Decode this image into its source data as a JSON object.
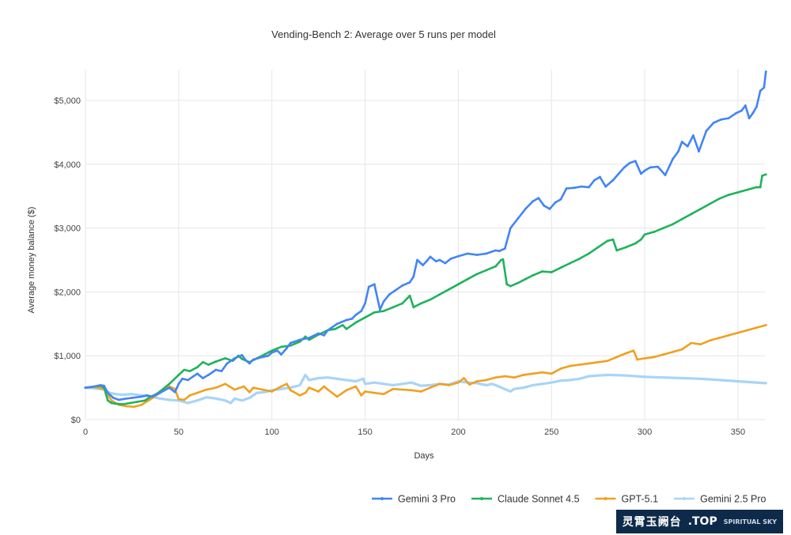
{
  "chart_data": {
    "type": "line",
    "title": "Vending-Bench 2: Average over 5 runs per model",
    "xlabel": "Days",
    "ylabel": "Average money balance ($)",
    "xlim": [
      0,
      365
    ],
    "ylim": [
      0,
      5500
    ],
    "x_ticks": [
      0,
      50,
      100,
      150,
      200,
      250,
      300,
      350
    ],
    "x_tick_labels": [
      "0",
      "50",
      "100",
      "150",
      "200",
      "250",
      "300",
      "350"
    ],
    "y_ticks": [
      0,
      1000,
      2000,
      3000,
      4000,
      5000
    ],
    "y_tick_labels": [
      "$0",
      "$1,000",
      "$2,000",
      "$3,000",
      "$4,000",
      "$5,000"
    ],
    "grid": true,
    "legend_position": "bottom-right",
    "series": [
      {
        "name": "Gemini 3 Pro",
        "color": "#4285f4",
        "x": [
          0,
          5,
          8,
          10,
          12,
          15,
          18,
          20,
          25,
          30,
          33,
          36,
          40,
          45,
          48,
          50,
          52,
          55,
          58,
          60,
          63,
          66,
          70,
          73,
          76,
          80,
          84,
          86,
          88,
          90,
          95,
          98,
          100,
          103,
          105,
          108,
          110,
          115,
          120,
          125,
          128,
          130,
          135,
          140,
          143,
          145,
          148,
          150,
          152,
          155,
          158,
          160,
          163,
          166,
          170,
          174,
          176,
          178,
          181,
          183,
          185,
          188,
          190,
          193,
          196,
          200,
          205,
          210,
          215,
          220,
          222,
          225,
          228,
          232,
          236,
          240,
          243,
          246,
          249,
          252,
          255,
          258,
          262,
          266,
          270,
          273,
          276,
          279,
          283,
          286,
          289,
          292,
          295,
          298,
          300,
          303,
          307,
          311,
          315,
          318,
          320,
          323,
          326,
          329,
          333,
          337,
          341,
          345,
          349,
          352,
          354,
          356,
          358,
          360,
          362,
          364,
          365
        ],
        "y": [
          500,
          520,
          540,
          530,
          420,
          340,
          310,
          320,
          340,
          360,
          380,
          360,
          420,
          500,
          430,
          560,
          640,
          620,
          680,
          720,
          650,
          700,
          780,
          760,
          880,
          960,
          1010,
          930,
          880,
          940,
          980,
          1000,
          1050,
          1080,
          1020,
          1120,
          1200,
          1250,
          1280,
          1350,
          1320,
          1400,
          1500,
          1560,
          1580,
          1640,
          1700,
          1820,
          2080,
          2120,
          1720,
          1850,
          1960,
          2020,
          2100,
          2150,
          2240,
          2500,
          2420,
          2480,
          2550,
          2480,
          2500,
          2450,
          2520,
          2560,
          2600,
          2580,
          2600,
          2650,
          2640,
          2680,
          3000,
          3150,
          3300,
          3420,
          3470,
          3350,
          3300,
          3400,
          3450,
          3620,
          3630,
          3650,
          3640,
          3750,
          3800,
          3650,
          3750,
          3850,
          3950,
          4020,
          4050,
          3850,
          3900,
          3950,
          3960,
          3830,
          4080,
          4200,
          4350,
          4280,
          4450,
          4200,
          4520,
          4650,
          4700,
          4720,
          4800,
          4840,
          4920,
          4720,
          4800,
          4900,
          5150,
          5200,
          5450
        ]
      },
      {
        "name": "Claude Sonnet 4.5",
        "color": "#1fb35b",
        "x": [
          0,
          5,
          8,
          10,
          12,
          14,
          16,
          20,
          24,
          28,
          32,
          35,
          38,
          40,
          45,
          50,
          53,
          56,
          60,
          63,
          66,
          70,
          75,
          79,
          82,
          84,
          88,
          92,
          96,
          100,
          105,
          110,
          115,
          118,
          120,
          125,
          130,
          134,
          138,
          140,
          145,
          150,
          155,
          160,
          165,
          170,
          174,
          176,
          180,
          185,
          190,
          195,
          200,
          205,
          210,
          215,
          220,
          223,
          224,
          226,
          228,
          232,
          236,
          240,
          245,
          250,
          255,
          260,
          265,
          270,
          275,
          280,
          283,
          285,
          290,
          295,
          298,
          300,
          305,
          310,
          315,
          320,
          325,
          330,
          335,
          340,
          345,
          350,
          355,
          360,
          362,
          363,
          365
        ],
        "y": [
          500,
          520,
          530,
          500,
          300,
          260,
          250,
          240,
          260,
          280,
          300,
          360,
          400,
          440,
          560,
          700,
          780,
          760,
          820,
          900,
          860,
          910,
          960,
          920,
          1000,
          950,
          900,
          960,
          1020,
          1080,
          1140,
          1160,
          1220,
          1300,
          1250,
          1330,
          1400,
          1420,
          1480,
          1420,
          1520,
          1600,
          1680,
          1700,
          1760,
          1820,
          1940,
          1760,
          1820,
          1880,
          1960,
          2040,
          2120,
          2200,
          2280,
          2340,
          2400,
          2500,
          2510,
          2120,
          2090,
          2140,
          2200,
          2260,
          2320,
          2310,
          2380,
          2450,
          2520,
          2600,
          2700,
          2800,
          2820,
          2650,
          2700,
          2760,
          2820,
          2900,
          2940,
          3000,
          3060,
          3140,
          3220,
          3300,
          3380,
          3460,
          3520,
          3560,
          3600,
          3640,
          3640,
          3820,
          3840
        ]
      },
      {
        "name": "GPT-5.1",
        "color": "#f0a020",
        "x": [
          0,
          5,
          10,
          14,
          18,
          22,
          26,
          30,
          35,
          40,
          45,
          48,
          50,
          53,
          56,
          60,
          65,
          70,
          75,
          80,
          85,
          88,
          90,
          95,
          100,
          105,
          108,
          110,
          115,
          118,
          120,
          125,
          128,
          130,
          135,
          140,
          145,
          148,
          150,
          155,
          160,
          165,
          170,
          175,
          180,
          185,
          190,
          195,
          200,
          203,
          206,
          210,
          215,
          220,
          225,
          230,
          235,
          240,
          245,
          250,
          255,
          260,
          265,
          270,
          275,
          280,
          285,
          290,
          294,
          296,
          300,
          305,
          310,
          315,
          320,
          325,
          330,
          335,
          340,
          345,
          350,
          355,
          360,
          365
        ],
        "y": [
          500,
          510,
          480,
          300,
          230,
          210,
          200,
          230,
          320,
          420,
          520,
          480,
          320,
          310,
          380,
          420,
          470,
          500,
          560,
          470,
          520,
          430,
          500,
          470,
          440,
          520,
          560,
          460,
          380,
          420,
          500,
          440,
          520,
          470,
          360,
          460,
          520,
          380,
          440,
          420,
          400,
          480,
          470,
          460,
          440,
          500,
          560,
          540,
          580,
          650,
          550,
          600,
          620,
          660,
          680,
          660,
          700,
          720,
          740,
          720,
          800,
          840,
          860,
          880,
          900,
          920,
          980,
          1040,
          1080,
          940,
          960,
          980,
          1020,
          1060,
          1100,
          1200,
          1180,
          1240,
          1280,
          1320,
          1360,
          1400,
          1440,
          1480
        ]
      },
      {
        "name": "Gemini 2.5 Pro",
        "color": "#a8d4f8",
        "x": [
          0,
          5,
          10,
          13,
          16,
          20,
          25,
          30,
          35,
          40,
          45,
          50,
          55,
          60,
          65,
          70,
          75,
          78,
          80,
          84,
          88,
          92,
          96,
          100,
          105,
          110,
          115,
          118,
          120,
          125,
          130,
          135,
          140,
          145,
          149,
          150,
          155,
          160,
          165,
          170,
          175,
          180,
          185,
          190,
          195,
          200,
          205,
          210,
          215,
          218,
          220,
          228,
          230,
          235,
          240,
          245,
          250,
          255,
          260,
          265,
          270,
          275,
          280,
          290,
          300,
          310,
          320,
          330,
          340,
          350,
          360,
          365
        ],
        "y": [
          500,
          490,
          470,
          420,
          400,
          390,
          400,
          380,
          360,
          330,
          310,
          300,
          260,
          300,
          350,
          330,
          300,
          260,
          330,
          300,
          340,
          420,
          430,
          460,
          480,
          500,
          540,
          700,
          620,
          650,
          660,
          640,
          620,
          600,
          640,
          560,
          580,
          560,
          540,
          560,
          580,
          530,
          540,
          560,
          550,
          600,
          580,
          570,
          540,
          560,
          540,
          440,
          480,
          500,
          540,
          560,
          580,
          610,
          620,
          640,
          680,
          690,
          700,
          690,
          670,
          660,
          650,
          640,
          620,
          600,
          580,
          570
        ]
      }
    ]
  },
  "watermark": {
    "text": "灵霄玉阙台",
    "tld": ".TOP",
    "subtitle": "SPIRITUAL SKY"
  }
}
